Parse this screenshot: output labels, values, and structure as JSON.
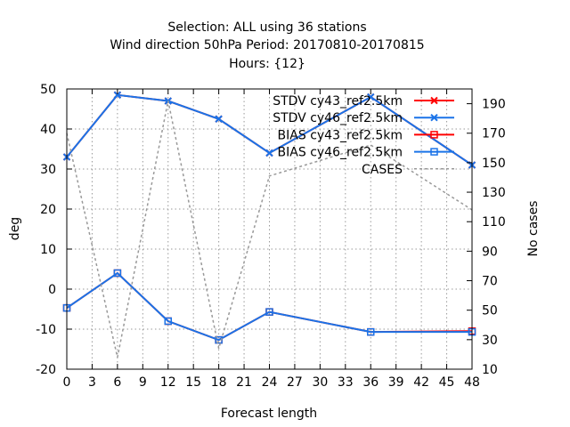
{
  "title_lines": [
    "Selection: ALL using    36 stations",
    "Wind direction 50hPa   Period: 20170810-20170815",
    "Hours: {12}"
  ],
  "chart_data": {
    "type": "line",
    "xlabel": "Forecast length",
    "ylabel": "deg",
    "y2label": "No cases",
    "xlim": [
      0,
      48
    ],
    "ylim": [
      -20,
      50
    ],
    "y2lim": [
      10,
      200
    ],
    "xticks": [
      0,
      3,
      6,
      9,
      12,
      15,
      18,
      21,
      24,
      27,
      30,
      33,
      36,
      39,
      42,
      45,
      48
    ],
    "yticks": [
      -20,
      -10,
      0,
      10,
      20,
      30,
      40,
      50
    ],
    "y2ticks": [
      10,
      30,
      50,
      70,
      90,
      110,
      130,
      150,
      170,
      190
    ],
    "grid": true,
    "legend_position": "top-right",
    "series": [
      {
        "name": "STDV cy43_ref2.5km",
        "axis": "y1",
        "marker": "x",
        "color": "#ff0000",
        "x": [
          0,
          6,
          12,
          18,
          24,
          36,
          48
        ],
        "values": [
          33,
          48.5,
          47,
          42.5,
          34,
          48,
          31
        ]
      },
      {
        "name": "STDV cy46_ref2.5km",
        "axis": "y1",
        "marker": "x",
        "color": "#1a73e8",
        "x": [
          0,
          6,
          12,
          18,
          24,
          36,
          48
        ],
        "values": [
          33,
          48.5,
          47,
          42.5,
          34,
          48,
          31
        ]
      },
      {
        "name": "BIAS cy43_ref2.5km",
        "axis": "y1",
        "marker": "square",
        "color": "#ff0000",
        "x": [
          0,
          6,
          12,
          18,
          24,
          36,
          48
        ],
        "values": [
          -4.7,
          4,
          -8,
          -12.7,
          -5.7,
          -10.7,
          -10.5
        ]
      },
      {
        "name": "BIAS cy46_ref2.5km",
        "axis": "y1",
        "marker": "square",
        "color": "#1a73e8",
        "x": [
          0,
          6,
          12,
          18,
          24,
          36,
          48
        ],
        "values": [
          -4.7,
          4,
          -8,
          -12.7,
          -5.7,
          -10.7,
          -10.7
        ]
      },
      {
        "name": "CASES",
        "axis": "y2",
        "marker": "none",
        "color": "#999999",
        "dashed": true,
        "x": [
          0,
          6,
          12,
          18,
          24,
          36,
          48
        ],
        "values": [
          170,
          18,
          192,
          24,
          141,
          162,
          118
        ]
      }
    ]
  }
}
